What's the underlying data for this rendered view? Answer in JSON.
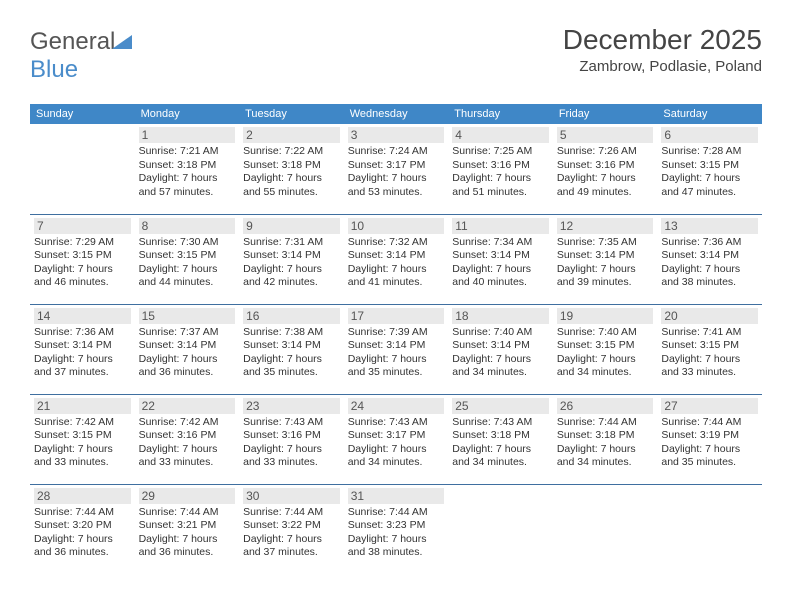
{
  "logo": {
    "text1": "General",
    "text2": "Blue",
    "accent": "#4a8cca"
  },
  "header": {
    "month": "December 2025",
    "location": "Zambrow, Podlasie, Poland"
  },
  "colors": {
    "header_bg": "#3f87c7",
    "header_fg": "#ffffff",
    "row_border": "#3f6fa0",
    "daynum_bg": "#e9e9e9",
    "text": "#333333"
  },
  "weekdays": [
    "Sunday",
    "Monday",
    "Tuesday",
    "Wednesday",
    "Thursday",
    "Friday",
    "Saturday"
  ],
  "weeks": [
    [
      {
        "n": "",
        "sr": "",
        "ss": "",
        "dl": ""
      },
      {
        "n": "1",
        "sr": "7:21 AM",
        "ss": "3:18 PM",
        "dl": "7 hours and 57 minutes."
      },
      {
        "n": "2",
        "sr": "7:22 AM",
        "ss": "3:18 PM",
        "dl": "7 hours and 55 minutes."
      },
      {
        "n": "3",
        "sr": "7:24 AM",
        "ss": "3:17 PM",
        "dl": "7 hours and 53 minutes."
      },
      {
        "n": "4",
        "sr": "7:25 AM",
        "ss": "3:16 PM",
        "dl": "7 hours and 51 minutes."
      },
      {
        "n": "5",
        "sr": "7:26 AM",
        "ss": "3:16 PM",
        "dl": "7 hours and 49 minutes."
      },
      {
        "n": "6",
        "sr": "7:28 AM",
        "ss": "3:15 PM",
        "dl": "7 hours and 47 minutes."
      }
    ],
    [
      {
        "n": "7",
        "sr": "7:29 AM",
        "ss": "3:15 PM",
        "dl": "7 hours and 46 minutes."
      },
      {
        "n": "8",
        "sr": "7:30 AM",
        "ss": "3:15 PM",
        "dl": "7 hours and 44 minutes."
      },
      {
        "n": "9",
        "sr": "7:31 AM",
        "ss": "3:14 PM",
        "dl": "7 hours and 42 minutes."
      },
      {
        "n": "10",
        "sr": "7:32 AM",
        "ss": "3:14 PM",
        "dl": "7 hours and 41 minutes."
      },
      {
        "n": "11",
        "sr": "7:34 AM",
        "ss": "3:14 PM",
        "dl": "7 hours and 40 minutes."
      },
      {
        "n": "12",
        "sr": "7:35 AM",
        "ss": "3:14 PM",
        "dl": "7 hours and 39 minutes."
      },
      {
        "n": "13",
        "sr": "7:36 AM",
        "ss": "3:14 PM",
        "dl": "7 hours and 38 minutes."
      }
    ],
    [
      {
        "n": "14",
        "sr": "7:36 AM",
        "ss": "3:14 PM",
        "dl": "7 hours and 37 minutes."
      },
      {
        "n": "15",
        "sr": "7:37 AM",
        "ss": "3:14 PM",
        "dl": "7 hours and 36 minutes."
      },
      {
        "n": "16",
        "sr": "7:38 AM",
        "ss": "3:14 PM",
        "dl": "7 hours and 35 minutes."
      },
      {
        "n": "17",
        "sr": "7:39 AM",
        "ss": "3:14 PM",
        "dl": "7 hours and 35 minutes."
      },
      {
        "n": "18",
        "sr": "7:40 AM",
        "ss": "3:14 PM",
        "dl": "7 hours and 34 minutes."
      },
      {
        "n": "19",
        "sr": "7:40 AM",
        "ss": "3:15 PM",
        "dl": "7 hours and 34 minutes."
      },
      {
        "n": "20",
        "sr": "7:41 AM",
        "ss": "3:15 PM",
        "dl": "7 hours and 33 minutes."
      }
    ],
    [
      {
        "n": "21",
        "sr": "7:42 AM",
        "ss": "3:15 PM",
        "dl": "7 hours and 33 minutes."
      },
      {
        "n": "22",
        "sr": "7:42 AM",
        "ss": "3:16 PM",
        "dl": "7 hours and 33 minutes."
      },
      {
        "n": "23",
        "sr": "7:43 AM",
        "ss": "3:16 PM",
        "dl": "7 hours and 33 minutes."
      },
      {
        "n": "24",
        "sr": "7:43 AM",
        "ss": "3:17 PM",
        "dl": "7 hours and 34 minutes."
      },
      {
        "n": "25",
        "sr": "7:43 AM",
        "ss": "3:18 PM",
        "dl": "7 hours and 34 minutes."
      },
      {
        "n": "26",
        "sr": "7:44 AM",
        "ss": "3:18 PM",
        "dl": "7 hours and 34 minutes."
      },
      {
        "n": "27",
        "sr": "7:44 AM",
        "ss": "3:19 PM",
        "dl": "7 hours and 35 minutes."
      }
    ],
    [
      {
        "n": "28",
        "sr": "7:44 AM",
        "ss": "3:20 PM",
        "dl": "7 hours and 36 minutes."
      },
      {
        "n": "29",
        "sr": "7:44 AM",
        "ss": "3:21 PM",
        "dl": "7 hours and 36 minutes."
      },
      {
        "n": "30",
        "sr": "7:44 AM",
        "ss": "3:22 PM",
        "dl": "7 hours and 37 minutes."
      },
      {
        "n": "31",
        "sr": "7:44 AM",
        "ss": "3:23 PM",
        "dl": "7 hours and 38 minutes."
      },
      {
        "n": "",
        "sr": "",
        "ss": "",
        "dl": ""
      },
      {
        "n": "",
        "sr": "",
        "ss": "",
        "dl": ""
      },
      {
        "n": "",
        "sr": "",
        "ss": "",
        "dl": ""
      }
    ]
  ],
  "labels": {
    "sunrise": "Sunrise:",
    "sunset": "Sunset:",
    "daylight": "Daylight:"
  }
}
